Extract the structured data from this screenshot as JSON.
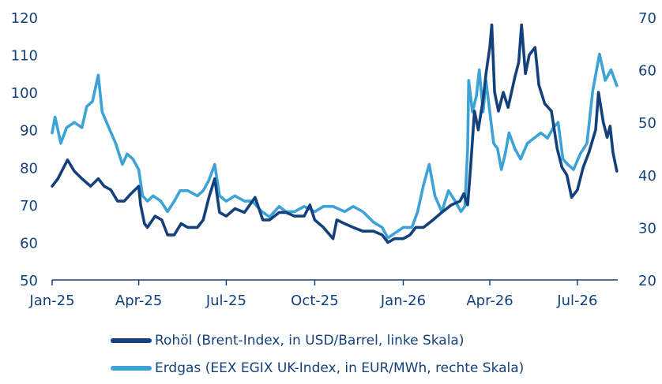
{
  "chart_data": {
    "type": "line",
    "title": "",
    "x_tick_labels": [
      "Jan-25",
      "Apr-25",
      "Jul-25",
      "Oct-25",
      "Jan-26",
      "Apr-26",
      "Jul-26"
    ],
    "x_tick_dates": [
      "2025-01-01",
      "2025-04-01",
      "2025-07-01",
      "2025-10-01",
      "2026-01-01",
      "2026-04-01",
      "2026-07-01"
    ],
    "xlim": [
      "2025-01-01",
      "2026-08-12"
    ],
    "y_left": {
      "lim": [
        50,
        120
      ],
      "ticks": [
        "50",
        "60",
        "70",
        "80",
        "90",
        "100",
        "110",
        "120"
      ]
    },
    "y_right": {
      "lim": [
        20,
        70
      ],
      "ticks": [
        "20",
        "30",
        "40",
        "50",
        "60",
        "70"
      ]
    },
    "grid": false,
    "legend_position": "bottom",
    "series": [
      {
        "name": "Rohöl (Brent-Index, in USD/Barrel, linke Skala)",
        "axis": "left",
        "color": "#14417b",
        "points": [
          [
            "2025-01-01",
            75
          ],
          [
            "2025-01-07",
            77
          ],
          [
            "2025-01-13",
            80
          ],
          [
            "2025-01-17",
            82
          ],
          [
            "2025-01-24",
            79
          ],
          [
            "2025-02-01",
            77
          ],
          [
            "2025-02-10",
            75
          ],
          [
            "2025-02-18",
            77
          ],
          [
            "2025-02-24",
            75
          ],
          [
            "2025-03-03",
            74
          ],
          [
            "2025-03-10",
            71
          ],
          [
            "2025-03-17",
            71
          ],
          [
            "2025-03-24",
            73
          ],
          [
            "2025-04-01",
            75
          ],
          [
            "2025-04-03",
            70
          ],
          [
            "2025-04-07",
            65
          ],
          [
            "2025-04-10",
            64
          ],
          [
            "2025-04-18",
            67
          ],
          [
            "2025-04-25",
            66
          ],
          [
            "2025-05-01",
            62
          ],
          [
            "2025-05-08",
            62
          ],
          [
            "2025-05-15",
            65
          ],
          [
            "2025-05-22",
            64
          ],
          [
            "2025-06-01",
            64
          ],
          [
            "2025-06-07",
            66
          ],
          [
            "2025-06-13",
            72
          ],
          [
            "2025-06-19",
            77
          ],
          [
            "2025-06-24",
            68
          ],
          [
            "2025-07-01",
            67
          ],
          [
            "2025-07-10",
            69
          ],
          [
            "2025-07-20",
            68
          ],
          [
            "2025-07-31",
            72
          ],
          [
            "2025-08-08",
            66
          ],
          [
            "2025-08-15",
            66
          ],
          [
            "2025-08-25",
            68
          ],
          [
            "2025-09-01",
            68
          ],
          [
            "2025-09-10",
            67
          ],
          [
            "2025-09-20",
            67
          ],
          [
            "2025-09-26",
            70
          ],
          [
            "2025-10-01",
            66
          ],
          [
            "2025-10-10",
            64
          ],
          [
            "2025-10-20",
            61
          ],
          [
            "2025-10-24",
            66
          ],
          [
            "2025-11-01",
            65
          ],
          [
            "2025-11-10",
            64
          ],
          [
            "2025-11-20",
            63
          ],
          [
            "2025-12-01",
            63
          ],
          [
            "2025-12-10",
            62
          ],
          [
            "2025-12-16",
            60
          ],
          [
            "2025-12-23",
            61
          ],
          [
            "2026-01-01",
            61
          ],
          [
            "2026-01-08",
            62
          ],
          [
            "2026-01-14",
            64
          ],
          [
            "2026-01-22",
            64
          ],
          [
            "2026-02-01",
            66
          ],
          [
            "2026-02-10",
            68
          ],
          [
            "2026-02-20",
            70
          ],
          [
            "2026-03-01",
            71
          ],
          [
            "2026-03-05",
            73
          ],
          [
            "2026-03-09",
            70
          ],
          [
            "2026-03-12",
            80
          ],
          [
            "2026-03-16",
            95
          ],
          [
            "2026-03-20",
            90
          ],
          [
            "2026-03-25",
            98
          ],
          [
            "2026-03-28",
            105
          ],
          [
            "2026-04-01",
            112
          ],
          [
            "2026-04-03",
            118
          ],
          [
            "2026-04-06",
            100
          ],
          [
            "2026-04-10",
            95
          ],
          [
            "2026-04-15",
            100
          ],
          [
            "2026-04-20",
            96
          ],
          [
            "2026-04-27",
            104
          ],
          [
            "2026-05-01",
            108
          ],
          [
            "2026-05-04",
            118
          ],
          [
            "2026-05-08",
            105
          ],
          [
            "2026-05-12",
            110
          ],
          [
            "2026-05-18",
            112
          ],
          [
            "2026-05-22",
            102
          ],
          [
            "2026-05-28",
            97
          ],
          [
            "2026-06-04",
            95
          ],
          [
            "2026-06-10",
            85
          ],
          [
            "2026-06-15",
            80
          ],
          [
            "2026-06-20",
            78
          ],
          [
            "2026-06-25",
            72
          ],
          [
            "2026-07-01",
            74
          ],
          [
            "2026-07-07",
            80
          ],
          [
            "2026-07-13",
            84
          ],
          [
            "2026-07-20",
            90
          ],
          [
            "2026-07-23",
            100
          ],
          [
            "2026-07-28",
            92
          ],
          [
            "2026-08-01",
            88
          ],
          [
            "2026-08-04",
            91
          ],
          [
            "2026-08-07",
            84
          ],
          [
            "2026-08-11",
            79
          ]
        ]
      },
      {
        "name": "Erdgas (EEX EGIX UK-Index, in EUR/MWh, rechte Skala)",
        "axis": "right",
        "color": "#3da3d6",
        "points": [
          [
            "2025-01-01",
            48
          ],
          [
            "2025-01-04",
            51
          ],
          [
            "2025-01-10",
            46
          ],
          [
            "2025-01-16",
            49
          ],
          [
            "2025-01-24",
            50
          ],
          [
            "2025-02-01",
            49
          ],
          [
            "2025-02-06",
            53
          ],
          [
            "2025-02-12",
            54
          ],
          [
            "2025-02-18",
            59
          ],
          [
            "2025-02-22",
            52
          ],
          [
            "2025-03-01",
            49
          ],
          [
            "2025-03-08",
            46
          ],
          [
            "2025-03-15",
            42
          ],
          [
            "2025-03-20",
            44
          ],
          [
            "2025-03-26",
            43
          ],
          [
            "2025-04-01",
            41
          ],
          [
            "2025-04-05",
            36
          ],
          [
            "2025-04-10",
            35
          ],
          [
            "2025-04-16",
            36
          ],
          [
            "2025-04-24",
            35
          ],
          [
            "2025-05-01",
            33
          ],
          [
            "2025-05-08",
            35
          ],
          [
            "2025-05-14",
            37
          ],
          [
            "2025-05-22",
            37
          ],
          [
            "2025-06-01",
            36
          ],
          [
            "2025-06-07",
            37
          ],
          [
            "2025-06-13",
            39
          ],
          [
            "2025-06-19",
            42
          ],
          [
            "2025-06-24",
            36
          ],
          [
            "2025-07-01",
            35
          ],
          [
            "2025-07-10",
            36
          ],
          [
            "2025-07-20",
            35
          ],
          [
            "2025-07-28",
            35
          ],
          [
            "2025-08-07",
            33
          ],
          [
            "2025-08-15",
            32
          ],
          [
            "2025-08-25",
            34
          ],
          [
            "2025-09-01",
            33
          ],
          [
            "2025-09-10",
            33
          ],
          [
            "2025-09-20",
            34
          ],
          [
            "2025-10-01",
            33
          ],
          [
            "2025-10-10",
            34
          ],
          [
            "2025-10-20",
            34
          ],
          [
            "2025-11-01",
            33
          ],
          [
            "2025-11-10",
            34
          ],
          [
            "2025-11-20",
            33
          ],
          [
            "2025-12-01",
            31
          ],
          [
            "2025-12-10",
            30
          ],
          [
            "2025-12-16",
            28
          ],
          [
            "2025-12-24",
            29
          ],
          [
            "2026-01-01",
            30
          ],
          [
            "2026-01-10",
            30
          ],
          [
            "2026-01-16",
            33
          ],
          [
            "2026-01-22",
            38
          ],
          [
            "2026-01-28",
            42
          ],
          [
            "2026-02-03",
            36
          ],
          [
            "2026-02-10",
            33
          ],
          [
            "2026-02-17",
            37
          ],
          [
            "2026-02-24",
            35
          ],
          [
            "2026-03-02",
            33
          ],
          [
            "2026-03-06",
            34
          ],
          [
            "2026-03-09",
            45
          ],
          [
            "2026-03-10",
            58
          ],
          [
            "2026-03-14",
            52
          ],
          [
            "2026-03-18",
            55
          ],
          [
            "2026-03-21",
            60
          ],
          [
            "2026-03-25",
            52
          ],
          [
            "2026-03-28",
            58
          ],
          [
            "2026-04-01",
            52
          ],
          [
            "2026-04-05",
            46
          ],
          [
            "2026-04-09",
            45
          ],
          [
            "2026-04-13",
            41
          ],
          [
            "2026-04-17",
            44
          ],
          [
            "2026-04-21",
            48
          ],
          [
            "2026-04-27",
            45
          ],
          [
            "2026-05-03",
            43
          ],
          [
            "2026-05-10",
            46
          ],
          [
            "2026-05-17",
            47
          ],
          [
            "2026-05-24",
            48
          ],
          [
            "2026-05-31",
            47
          ],
          [
            "2026-06-06",
            49
          ],
          [
            "2026-06-11",
            50
          ],
          [
            "2026-06-16",
            43
          ],
          [
            "2026-06-21",
            42
          ],
          [
            "2026-06-27",
            41
          ],
          [
            "2026-07-04",
            44
          ],
          [
            "2026-07-11",
            46
          ],
          [
            "2026-07-17",
            56
          ],
          [
            "2026-07-24",
            63
          ],
          [
            "2026-07-30",
            58
          ],
          [
            "2026-08-05",
            60
          ],
          [
            "2026-08-11",
            57
          ]
        ]
      }
    ]
  }
}
